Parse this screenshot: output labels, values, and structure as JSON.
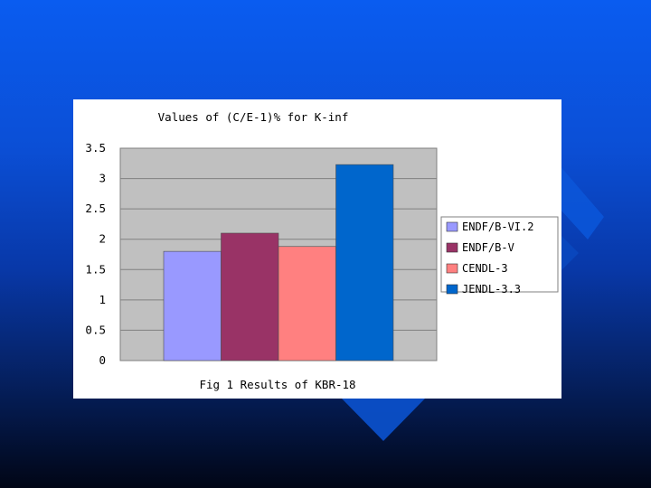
{
  "chart_data": {
    "type": "bar",
    "title": "Values of (C/E-1)% for K-inf",
    "xlabel": "Fig 1 Results of KBR-18",
    "ylabel": "",
    "ylim": [
      0,
      3.5
    ],
    "yticks": [
      "3.5",
      "3",
      "2.5",
      "2",
      "1.5",
      "1",
      "0.5",
      "0"
    ],
    "ytick_values": [
      3.5,
      3,
      2.5,
      2,
      1.5,
      1,
      0.5,
      0
    ],
    "grid": true,
    "legend_position": "right",
    "categories": [
      "KBR-18"
    ],
    "series": [
      {
        "name": "ENDF/B-VI.2",
        "values": [
          1.8
        ],
        "color": "#9999ff"
      },
      {
        "name": "ENDF/B-V",
        "values": [
          2.1
        ],
        "color": "#993366"
      },
      {
        "name": "CENDL-3",
        "values": [
          1.88
        ],
        "color": "#ff8080"
      },
      {
        "name": "JENDL-3.3",
        "values": [
          3.23
        ],
        "color": "#0066cc"
      }
    ],
    "plot_background": "#c0c0c0"
  },
  "colors": {
    "background_top": "#0a5cf0",
    "background_bottom": "#010616",
    "decoration": "#0b55d8"
  }
}
